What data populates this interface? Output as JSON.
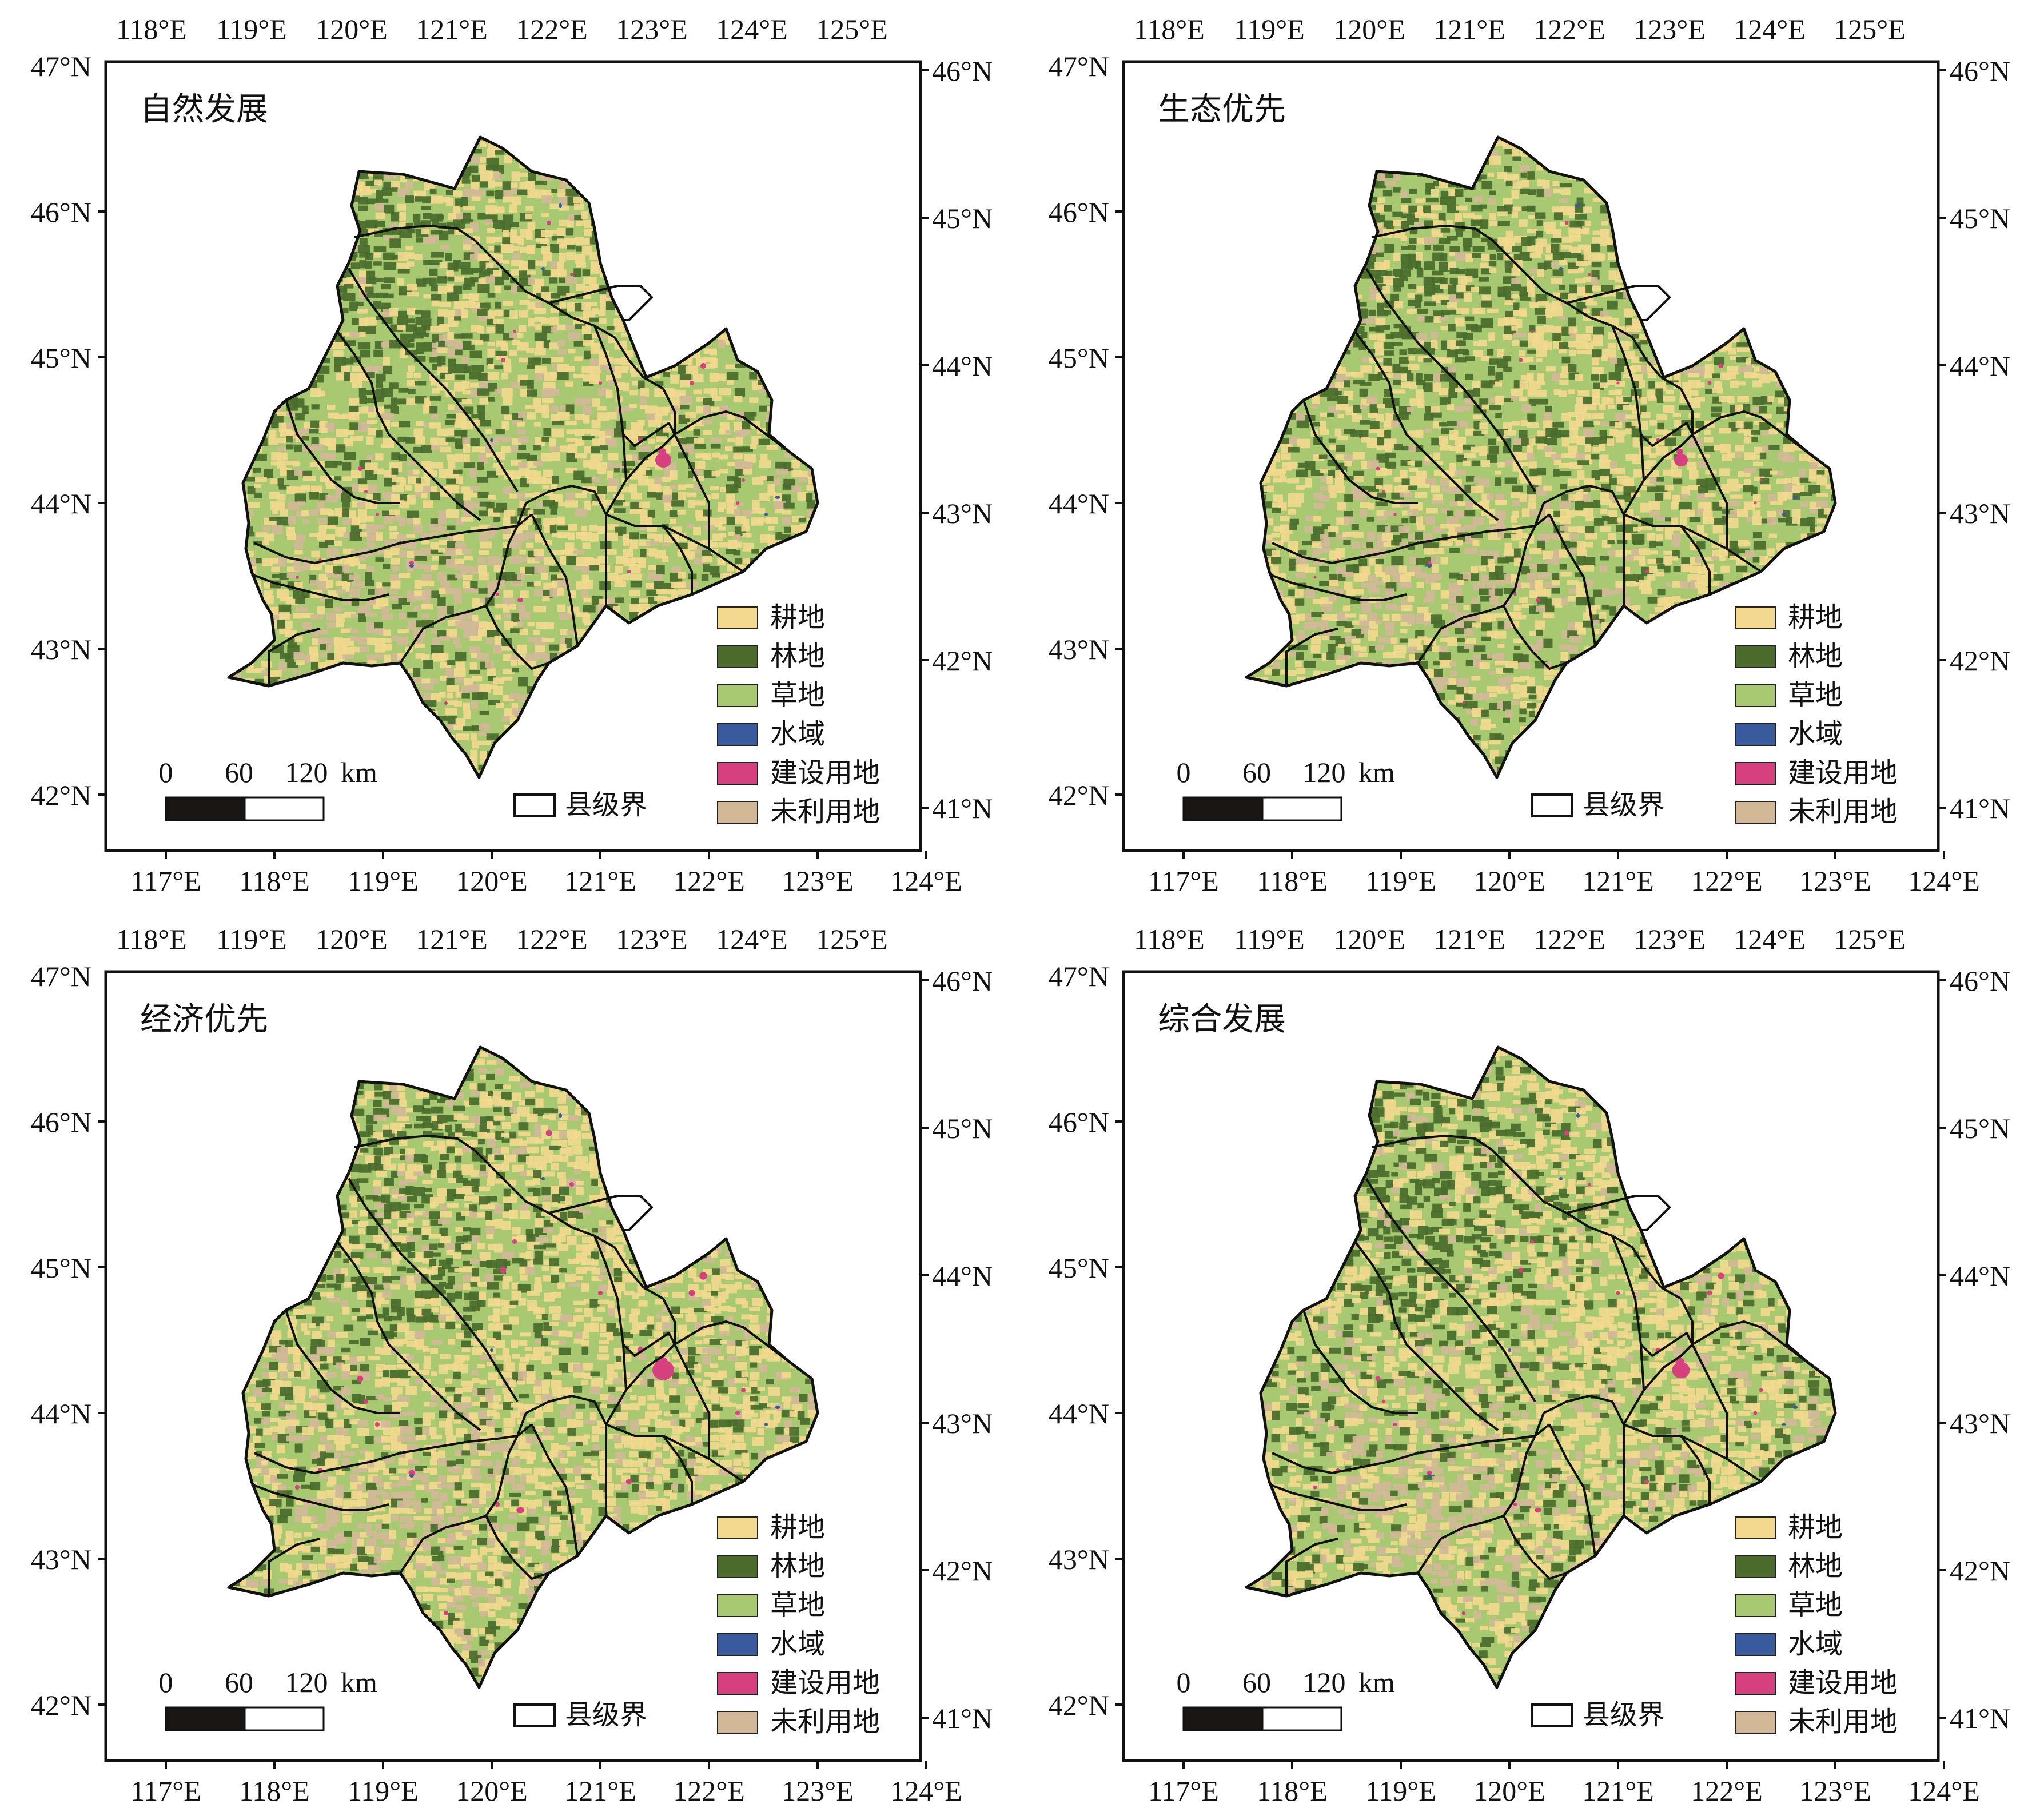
{
  "panels": [
    {
      "title": "自然发展"
    },
    {
      "title": "生态优先"
    },
    {
      "title": "经济优先"
    },
    {
      "title": "综合发展"
    }
  ],
  "axes": {
    "top_lon_labels": [
      "118°E",
      "119°E",
      "120°E",
      "121°E",
      "122°E",
      "123°E",
      "124°E",
      "125°E"
    ],
    "bottom_lon_labels": [
      "117°E",
      "118°E",
      "119°E",
      "120°E",
      "121°E",
      "122°E",
      "123°E",
      "124°E"
    ],
    "left_lat_labels": [
      "47°N",
      "46°N",
      "45°N",
      "44°N",
      "43°N",
      "42°N"
    ],
    "right_lat_labels": [
      "46°N",
      "45°N",
      "44°N",
      "43°N",
      "42°N",
      "41°N"
    ]
  },
  "legend": {
    "items": [
      {
        "label": "耕地",
        "color": "#f2d98f"
      },
      {
        "label": "林地",
        "color": "#4a6b2c"
      },
      {
        "label": "草地",
        "color": "#a8c872"
      },
      {
        "label": "水域",
        "color": "#3a5a9e"
      },
      {
        "label": "建设用地",
        "color": "#d6407e"
      },
      {
        "label": "未利用地",
        "color": "#d3b898"
      }
    ],
    "boundary_label": "县级界"
  },
  "scalebar": {
    "labels": [
      "0",
      "60",
      "120"
    ],
    "unit": "km"
  }
}
